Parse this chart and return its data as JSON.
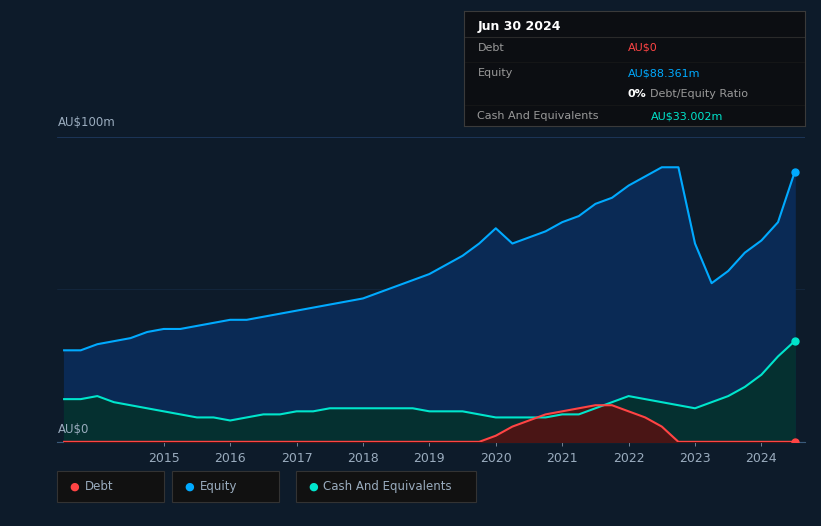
{
  "bg_color": "#0d1b2a",
  "plot_bg_color": "#0d1b2a",
  "ylabel_text": "AU$100m",
  "y0_label": "AU$0",
  "grid_color": "#1e3a5f",
  "axis_color": "#3a5a7a",
  "text_color": "#9aacbe",
  "equity_color": "#00aaff",
  "equity_fill": "#0a2a55",
  "debt_color": "#ff4444",
  "debt_fill": "#4a1515",
  "cash_color": "#00e5cc",
  "cash_fill": "#053030",
  "legend_colors": [
    "#ff4444",
    "#00aaff",
    "#00e5cc"
  ],
  "legend_labels": [
    "Debt",
    "Equity",
    "Cash And Equivalents"
  ],
  "tooltip_header": "Jun 30 2024",
  "tooltip_debt_label": "Debt",
  "tooltip_debt_value": "AU$0",
  "tooltip_equity_label": "Equity",
  "tooltip_equity_value": "AU$88.361m",
  "tooltip_ratio": "0%",
  "tooltip_ratio_text": "Debt/Equity Ratio",
  "tooltip_cash_label": "Cash And Equivalents",
  "tooltip_cash_value": "AU$33.002m",
  "dates_equity": [
    2013.5,
    2013.75,
    2014.0,
    2014.25,
    2014.5,
    2014.75,
    2015.0,
    2015.25,
    2015.5,
    2015.75,
    2016.0,
    2016.25,
    2016.5,
    2016.75,
    2017.0,
    2017.25,
    2017.5,
    2017.75,
    2018.0,
    2018.25,
    2018.5,
    2018.75,
    2019.0,
    2019.25,
    2019.5,
    2019.75,
    2020.0,
    2020.25,
    2020.5,
    2020.75,
    2021.0,
    2021.25,
    2021.5,
    2021.75,
    2022.0,
    2022.25,
    2022.5,
    2022.75,
    2023.0,
    2023.25,
    2023.5,
    2023.75,
    2024.0,
    2024.25,
    2024.5
  ],
  "values_equity": [
    30,
    30,
    32,
    33,
    34,
    36,
    37,
    37,
    38,
    39,
    40,
    40,
    41,
    42,
    43,
    44,
    45,
    46,
    47,
    49,
    51,
    53,
    55,
    58,
    61,
    65,
    70,
    65,
    67,
    69,
    72,
    74,
    78,
    80,
    84,
    87,
    90,
    90,
    65,
    52,
    56,
    62,
    66,
    72,
    88.36
  ],
  "dates_debt": [
    2013.5,
    2014.0,
    2014.5,
    2015.0,
    2015.5,
    2016.0,
    2016.5,
    2017.0,
    2017.5,
    2018.0,
    2018.5,
    2019.0,
    2019.5,
    2019.75,
    2020.0,
    2020.25,
    2020.5,
    2020.75,
    2021.0,
    2021.25,
    2021.5,
    2021.75,
    2022.0,
    2022.25,
    2022.5,
    2022.75,
    2023.0,
    2023.5,
    2024.0,
    2024.5
  ],
  "values_debt": [
    0,
    0,
    0,
    0,
    0,
    0,
    0,
    0,
    0,
    0,
    0,
    0,
    0,
    0,
    2,
    5,
    7,
    9,
    10,
    11,
    12,
    12,
    10,
    8,
    5,
    0,
    0,
    0,
    0,
    0
  ],
  "dates_cash": [
    2013.5,
    2013.75,
    2014.0,
    2014.25,
    2014.5,
    2014.75,
    2015.0,
    2015.25,
    2015.5,
    2015.75,
    2016.0,
    2016.25,
    2016.5,
    2016.75,
    2017.0,
    2017.25,
    2017.5,
    2017.75,
    2018.0,
    2018.25,
    2018.5,
    2018.75,
    2019.0,
    2019.25,
    2019.5,
    2019.75,
    2020.0,
    2020.25,
    2020.5,
    2020.75,
    2021.0,
    2021.25,
    2021.5,
    2021.75,
    2022.0,
    2022.25,
    2022.5,
    2022.75,
    2023.0,
    2023.25,
    2023.5,
    2023.75,
    2024.0,
    2024.25,
    2024.5
  ],
  "values_cash": [
    14,
    14,
    15,
    13,
    12,
    11,
    10,
    9,
    8,
    8,
    7,
    8,
    9,
    9,
    10,
    10,
    11,
    11,
    11,
    11,
    11,
    11,
    10,
    10,
    10,
    9,
    8,
    8,
    8,
    8,
    9,
    9,
    11,
    13,
    15,
    14,
    13,
    12,
    11,
    13,
    15,
    18,
    22,
    28,
    33
  ],
  "xlim": [
    2013.4,
    2024.65
  ],
  "ylim": [
    0,
    100
  ],
  "xticks": [
    2015,
    2016,
    2017,
    2018,
    2019,
    2020,
    2021,
    2022,
    2023,
    2024
  ]
}
